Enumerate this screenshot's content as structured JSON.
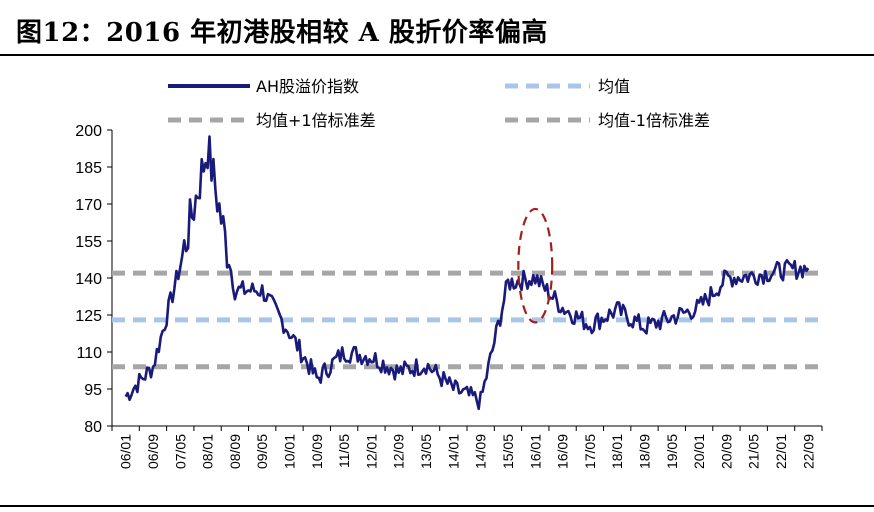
{
  "header": {
    "title": "图12：2016 年初港股相较 A 股折价率偏高"
  },
  "chart_data": {
    "type": "line",
    "title": "图12：2016 年初港股相较 A 股折价率偏高",
    "ylim": [
      80,
      200
    ],
    "yticks": [
      80,
      95,
      110,
      125,
      140,
      155,
      170,
      185,
      200
    ],
    "categories": [
      "06/01",
      "06/09",
      "07/05",
      "08/01",
      "08/09",
      "09/05",
      "10/01",
      "10/09",
      "11/05",
      "12/01",
      "12/09",
      "13/05",
      "14/01",
      "14/09",
      "15/05",
      "16/01",
      "16/09",
      "17/05",
      "18/01",
      "18/09",
      "19/05",
      "20/01",
      "20/09",
      "21/05",
      "22/01",
      "22/09"
    ],
    "series": [
      {
        "name": "AH股溢价指数",
        "color": "#1a1a7a",
        "values": [
          92,
          104,
          145,
          193,
          135,
          135,
          118,
          99,
          110,
          108,
          102,
          105,
          95,
          90,
          138,
          140,
          128,
          121,
          127,
          120,
          124,
          128,
          140,
          141,
          143,
          144
        ]
      },
      {
        "name": "均值",
        "color": "#a9c6e8",
        "value": 123
      },
      {
        "name": "均值+1倍标准差",
        "color": "#a6a6a6",
        "value": 142
      },
      {
        "name": "均值-1倍标准差",
        "color": "#a6a6a6",
        "value": 104
      }
    ],
    "legend": [
      "AH股溢价指数",
      "均值",
      "均值+1倍标准差",
      "均值-1倍标准差"
    ],
    "annotation": {
      "type": "dashed-ellipse",
      "color": "#a0201c",
      "category_start": "15/05",
      "category_end": "16/09",
      "y_low": 122,
      "y_high": 168
    }
  }
}
